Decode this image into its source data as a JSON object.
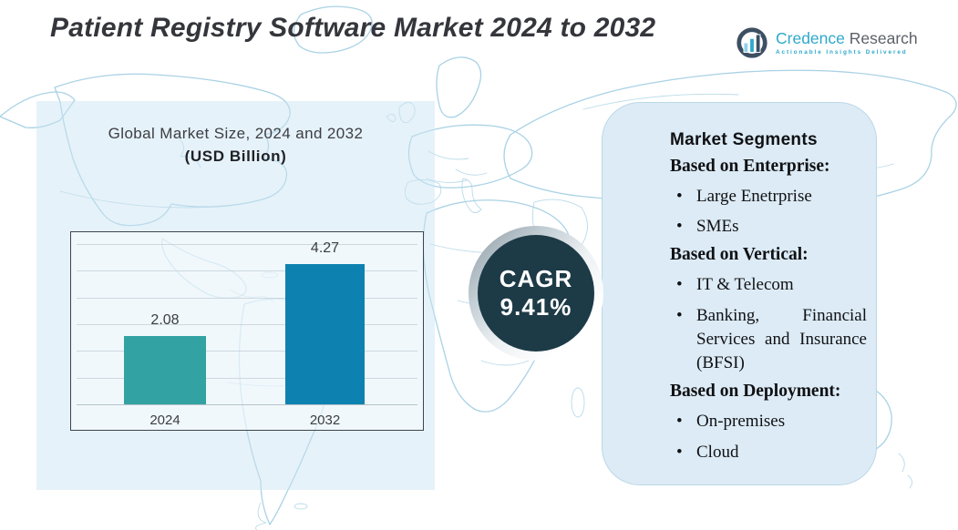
{
  "title": "Patient Registry Software Market 2024 to 2032",
  "logo": {
    "brand_primary": "Credence",
    "brand_secondary": "Research",
    "tagline": "Actionable Insights Delivered",
    "accent_color": "#2ea9cb"
  },
  "chart_panel": {
    "heading_line1": "Global Market Size, 2024 and 2032",
    "heading_line2": "(USD Billion)"
  },
  "chart_data": {
    "type": "bar",
    "title": "Global Market Size, 2024 and 2032 (USD Billion)",
    "categories": [
      "2024",
      "2032"
    ],
    "values": [
      2.08,
      4.27
    ],
    "value_labels": [
      "2.08",
      "4.27"
    ],
    "bar_colors": [
      "#33a2a2",
      "#0d82b1"
    ],
    "unit": "USD Billion",
    "ylim": [
      0,
      5
    ],
    "grid": true,
    "legend": "none"
  },
  "cagr_badge": {
    "label": "CAGR",
    "value": "9.41%",
    "bg_color": "#1d3a47",
    "text_color": "#ffffff"
  },
  "segments_panel": {
    "title": "Market Segments",
    "groups": [
      {
        "heading": "Based on Enterprise:",
        "items": [
          "Large Enetrprise",
          "SMEs"
        ]
      },
      {
        "heading": "Based on Vertical:",
        "items": [
          "IT & Telecom",
          "Banking, Financial Services and Insurance (BFSI)"
        ]
      },
      {
        "heading": "Based on Deployment:",
        "items": [
          "On-premises",
          "Cloud"
        ]
      }
    ]
  }
}
